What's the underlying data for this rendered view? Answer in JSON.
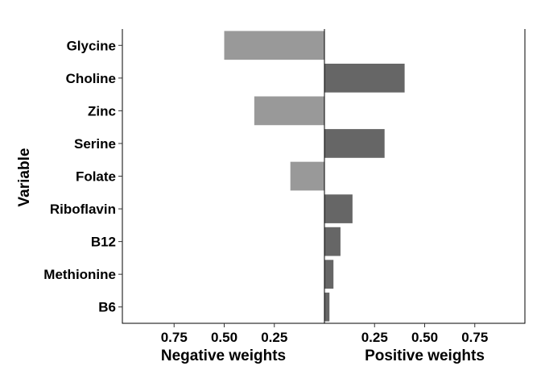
{
  "chart_data": {
    "type": "bar",
    "orientation": "horizontal",
    "ylabel": "Variable",
    "categories": [
      "B6",
      "Methionine",
      "B12",
      "Riboflavin",
      "Folate",
      "Serine",
      "Zinc",
      "Choline",
      "Glycine"
    ],
    "panels": [
      {
        "name": "negative",
        "xlabel": "Negative weights",
        "xlim": [
          1.0,
          0
        ],
        "x_reversed": true,
        "ticks": [
          0.75,
          0.5,
          0.25
        ],
        "tick_labels": [
          "0.75",
          "0.50",
          "0.25"
        ],
        "bar_color": "#999999",
        "values": [
          0,
          0,
          0,
          0,
          0.17,
          0,
          0.35,
          0,
          0.5
        ]
      },
      {
        "name": "positive",
        "xlabel": "Positive weights",
        "xlim": [
          0,
          1.0
        ],
        "x_reversed": false,
        "ticks": [
          0.25,
          0.5,
          0.75
        ],
        "tick_labels": [
          "0.25",
          "0.50",
          "0.75"
        ],
        "bar_color": "#666666",
        "values": [
          0.025,
          0.045,
          0.08,
          0.14,
          0,
          0.3,
          0,
          0.4,
          0
        ]
      }
    ]
  }
}
